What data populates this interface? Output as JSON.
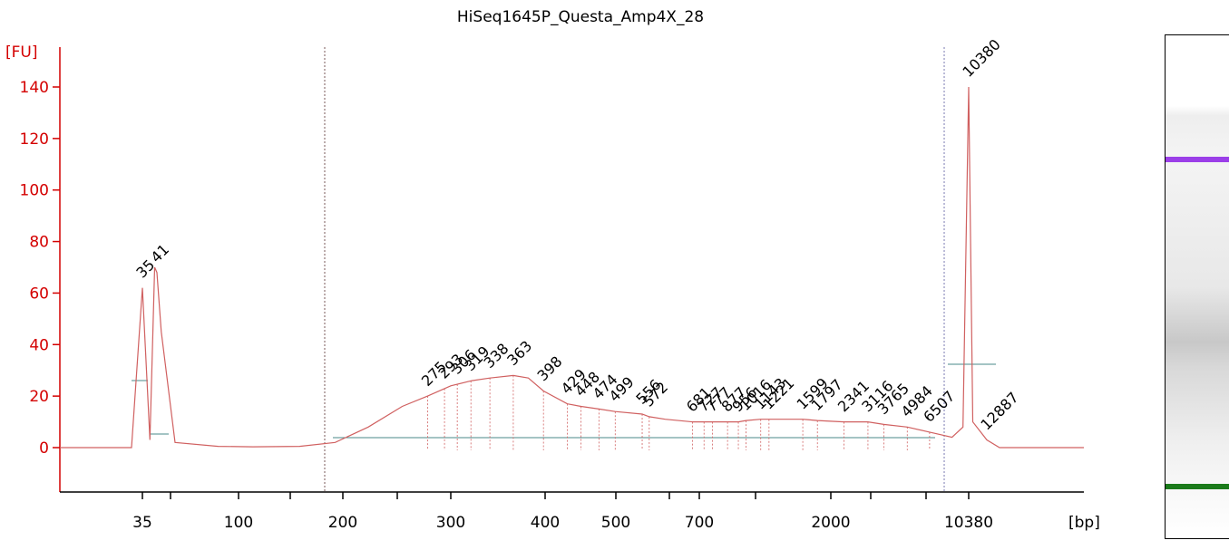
{
  "chart_data": {
    "type": "line",
    "title": "HiSeq1645P_Questa_Amp4X_28",
    "ylabel": "[FU]",
    "xlabel": "[bp]",
    "ylim": [
      -15,
      147
    ],
    "yticks": [
      0,
      20,
      40,
      60,
      80,
      100,
      120,
      140
    ],
    "xtick_labels": [
      "35",
      "100",
      "200",
      "300",
      "400",
      "500",
      "700",
      "2000",
      "10380"
    ],
    "grid": false,
    "series": [
      {
        "x": [
          35,
          38,
          40,
          41,
          43,
          50,
          80,
          110,
          150,
          190,
          220,
          250,
          275,
          300,
          320,
          338,
          363,
          380,
          398,
          429,
          448,
          474,
          499,
          556,
          572,
          610,
          681,
          727,
          777,
          877,
          956,
          1016,
          1143,
          1221,
          1599,
          1797,
          2341,
          3116,
          3765,
          4984,
          6507,
          8500,
          9700,
          10380,
          10900,
          12887,
          15000
        ],
        "y": [
          62,
          3,
          70,
          68,
          45,
          2,
          0.5,
          0.3,
          0.5,
          2,
          8,
          16,
          20,
          24,
          26,
          27,
          28,
          27,
          22,
          17,
          16,
          15,
          14,
          13,
          12,
          11,
          10,
          10,
          10,
          10,
          10,
          10.5,
          11,
          11,
          11,
          10.5,
          10,
          10,
          9,
          8,
          6,
          4,
          8,
          140,
          10,
          3,
          0
        ]
      }
    ],
    "peak_labels": [
      {
        "bp": 35,
        "text": "35",
        "color": "#1a7a1a"
      },
      {
        "bp": 41,
        "text": "41",
        "color": "#000000"
      },
      {
        "bp": 275,
        "text": "275",
        "color": "#000000"
      },
      {
        "bp": 293,
        "text": "293",
        "color": "#000000"
      },
      {
        "bp": 306,
        "text": "306",
        "color": "#000000"
      },
      {
        "bp": 319,
        "text": "319",
        "color": "#000000"
      },
      {
        "bp": 338,
        "text": "338",
        "color": "#000000"
      },
      {
        "bp": 363,
        "text": "363",
        "color": "#000000"
      },
      {
        "bp": 398,
        "text": "398",
        "color": "#000000"
      },
      {
        "bp": 429,
        "text": "429",
        "color": "#000000"
      },
      {
        "bp": 448,
        "text": "448",
        "color": "#000000"
      },
      {
        "bp": 474,
        "text": "474",
        "color": "#000000"
      },
      {
        "bp": 499,
        "text": "499",
        "color": "#000000"
      },
      {
        "bp": 556,
        "text": "556",
        "color": "#000000"
      },
      {
        "bp": 572,
        "text": "572",
        "color": "#000000"
      },
      {
        "bp": 681,
        "text": "681",
        "color": "#000000"
      },
      {
        "bp": 727,
        "text": "727",
        "color": "#000000"
      },
      {
        "bp": 777,
        "text": "777",
        "color": "#000000"
      },
      {
        "bp": 877,
        "text": "877",
        "color": "#000000"
      },
      {
        "bp": 956,
        "text": "956",
        "color": "#000000"
      },
      {
        "bp": 1016,
        "text": "1016",
        "color": "#000000"
      },
      {
        "bp": 1143,
        "text": "1143",
        "color": "#000000"
      },
      {
        "bp": 1221,
        "text": "1221",
        "color": "#000000"
      },
      {
        "bp": 1599,
        "text": "1599",
        "color": "#000000"
      },
      {
        "bp": 1797,
        "text": "1797",
        "color": "#000000"
      },
      {
        "bp": 2341,
        "text": "2341",
        "color": "#000000"
      },
      {
        "bp": 3116,
        "text": "3116",
        "color": "#000000"
      },
      {
        "bp": 3765,
        "text": "3765",
        "color": "#000000"
      },
      {
        "bp": 4984,
        "text": "4984",
        "color": "#000000"
      },
      {
        "bp": 6507,
        "text": "6507",
        "color": "#000000"
      },
      {
        "bp": 10380,
        "text": "10380",
        "color": "#9b3fe8"
      },
      {
        "bp": 12887,
        "text": "12887",
        "color": "#000000"
      }
    ],
    "colors": {
      "trace": "#d06060",
      "axis": "#d40000",
      "upper_marker": "#9b3fe8",
      "lower_marker": "#1a7a1a"
    }
  }
}
